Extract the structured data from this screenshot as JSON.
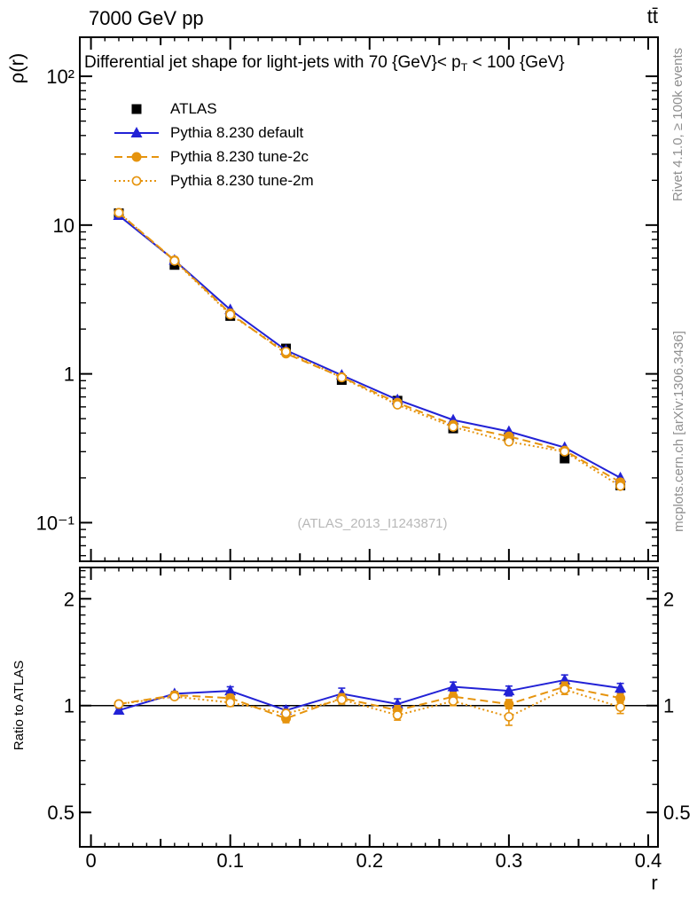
{
  "header": {
    "beam_label": "7000 GeV pp",
    "process_label": "tt̄"
  },
  "axis_labels": {
    "y_main": "ρ(r)",
    "y_ratio": "Ratio to ATLAS",
    "x": "r"
  },
  "title": {
    "pre_sub": "Differential jet shape for light-jets with 70 {GeV}< p",
    "sub": "T",
    "post_sub": " < 100 {GeV}"
  },
  "watermark": "(ATLAS_2013_I1243871)",
  "side_notes": {
    "top_right": "Rivet 4.1.0, ≥ 100k events",
    "bottom_right": "mcplots.cern.ch [arXiv:1306.3436]"
  },
  "colors": {
    "frame": "#000000",
    "atlas": "#000000",
    "pythia_default_blue": "#2222d6",
    "pythia_tune_orange": "#e6940e",
    "side_note_gray": "#8f8f8f",
    "watermark_gray": "#b8b8b8"
  },
  "legend": {
    "items": [
      {
        "label": "ATLAS",
        "marker": "square-filled",
        "line": "none",
        "color": "#000000"
      },
      {
        "label": "Pythia 8.230 default",
        "marker": "triangle-filled",
        "line": "solid",
        "color": "#2222d6"
      },
      {
        "label": "Pythia 8.230 tune-2c",
        "marker": "circle-filled",
        "line": "dashed",
        "color": "#e6940e"
      },
      {
        "label": "Pythia 8.230 tune-2m",
        "marker": "circle-open",
        "line": "dotted",
        "color": "#e6940e"
      }
    ]
  },
  "chart_data": [
    {
      "type": "line",
      "panel": "main",
      "title": "Differential jet shape for light-jets with 70 {GeV}< p_T < 100 {GeV}",
      "xlabel": "r",
      "ylabel": "ρ(r)",
      "xscale": "linear",
      "yscale": "log",
      "xlim": [
        -0.008,
        0.407
      ],
      "ylim": [
        0.055,
        183
      ],
      "xticks": {
        "major": [
          0,
          0.1,
          0.2,
          0.3,
          0.4
        ],
        "labels": [
          "0",
          "0.1",
          "0.2",
          "0.3",
          "0.4"
        ],
        "medium_step": 0.05,
        "minor_step": 0.01
      },
      "yticks": {
        "major": [
          100,
          10,
          1,
          0.1
        ],
        "labels": [
          "10²",
          "10",
          "1",
          "10⁻¹"
        ]
      },
      "grid": false,
      "legend_position": "top-left",
      "x": [
        0.02,
        0.06,
        0.1,
        0.14,
        0.18,
        0.22,
        0.26,
        0.3,
        0.34,
        0.38
      ],
      "series": [
        {
          "name": "ATLAS",
          "values": [
            12.0,
            5.4,
            2.45,
            1.48,
            0.91,
            0.66,
            0.43,
            0.375,
            0.27,
            0.178
          ]
        },
        {
          "name": "Pythia 8.230 default",
          "values": [
            11.6,
            5.8,
            2.7,
            1.44,
            0.98,
            0.67,
            0.49,
            0.41,
            0.32,
            0.2
          ]
        },
        {
          "name": "Pythia 8.230 tune-2c",
          "values": [
            12.1,
            5.8,
            2.55,
            1.37,
            0.95,
            0.64,
            0.455,
            0.38,
            0.305,
            0.187
          ]
        },
        {
          "name": "Pythia 8.230 tune-2m",
          "values": [
            12.1,
            5.75,
            2.5,
            1.41,
            0.945,
            0.62,
            0.44,
            0.35,
            0.3,
            0.176
          ]
        }
      ]
    },
    {
      "type": "line",
      "panel": "ratio",
      "ylabel": "Ratio to ATLAS",
      "xscale": "linear",
      "yscale": "log",
      "xlim": [
        -0.008,
        0.407
      ],
      "ylim": [
        0.4,
        2.45
      ],
      "yticks": {
        "major": [
          2,
          1,
          0.5
        ],
        "labels": [
          "2",
          "1",
          "0.5"
        ],
        "minor_step": 0.1
      },
      "reference_line": 1,
      "x": [
        0.02,
        0.06,
        0.1,
        0.14,
        0.18,
        0.22,
        0.26,
        0.3,
        0.34,
        0.38
      ],
      "series": [
        {
          "name": "Pythia 8.230 default",
          "values": [
            0.97,
            1.08,
            1.1,
            0.97,
            1.08,
            1.01,
            1.13,
            1.1,
            1.18,
            1.12
          ],
          "errors": [
            0.015,
            0.015,
            0.03,
            0.025,
            0.04,
            0.035,
            0.035,
            0.035,
            0.04,
            0.035
          ]
        },
        {
          "name": "Pythia 8.230 tune-2c",
          "values": [
            1.01,
            1.07,
            1.05,
            0.92,
            1.05,
            0.97,
            1.06,
            1.01,
            1.13,
            1.05
          ],
          "errors": [
            0.015,
            0.015,
            0.025,
            0.025,
            0.03,
            0.03,
            0.03,
            0.03,
            0.035,
            0.03
          ]
        },
        {
          "name": "Pythia 8.230 tune-2m",
          "values": [
            1.01,
            1.06,
            1.02,
            0.95,
            1.04,
            0.94,
            1.03,
            0.93,
            1.11,
            0.99
          ],
          "errors": [
            0.015,
            0.015,
            0.025,
            0.025,
            0.03,
            0.03,
            0.03,
            0.05,
            0.035,
            0.04
          ]
        }
      ]
    }
  ]
}
